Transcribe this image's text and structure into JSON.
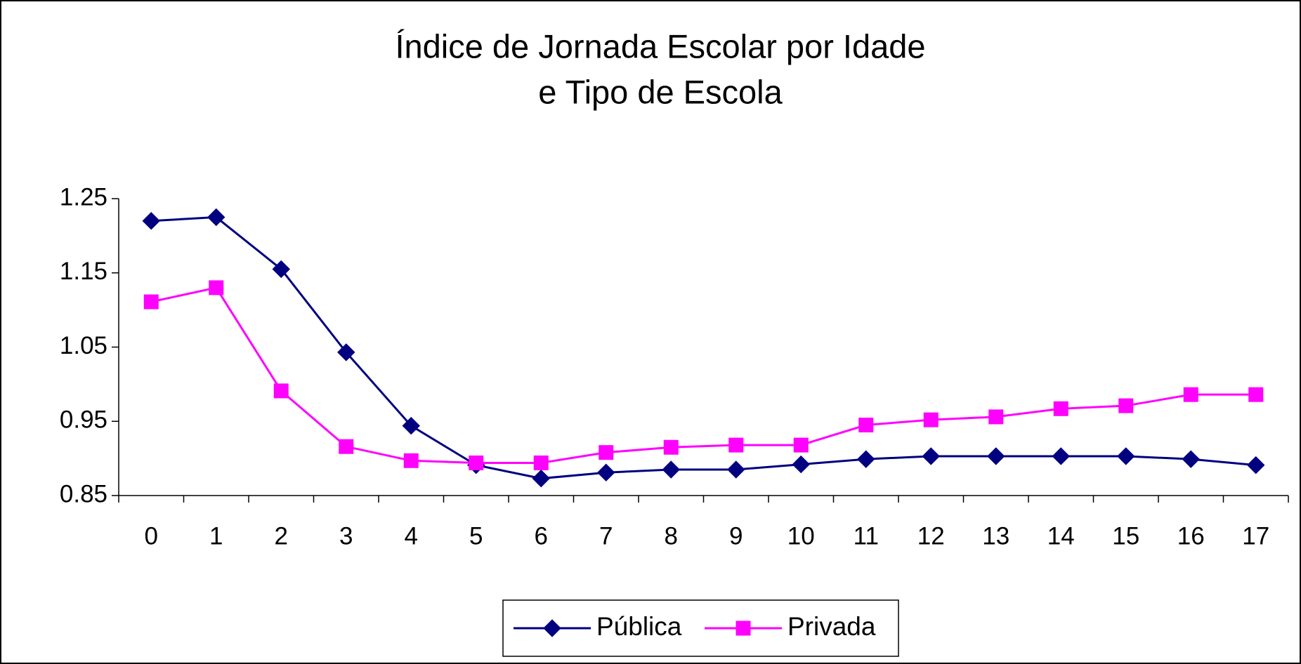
{
  "chart_data": {
    "type": "line",
    "title": [
      "Índice de Jornada Escolar por Idade",
      "e Tipo de Escola"
    ],
    "categories": [
      "0",
      "1",
      "2",
      "3",
      "4",
      "5",
      "6",
      "7",
      "8",
      "9",
      "10",
      "11",
      "12",
      "13",
      "14",
      "15",
      "16",
      "17"
    ],
    "series": [
      {
        "name": "Pública",
        "color": "#000080",
        "marker": "diamond",
        "values": [
          1.22,
          1.225,
          1.155,
          1.043,
          0.944,
          0.891,
          0.873,
          0.881,
          0.885,
          0.885,
          0.892,
          0.899,
          0.903,
          0.903,
          0.903,
          0.903,
          0.899,
          0.891
        ]
      },
      {
        "name": "Privada",
        "color": "#ff00ff",
        "marker": "square",
        "values": [
          1.111,
          1.13,
          0.991,
          0.916,
          0.897,
          0.894,
          0.894,
          0.908,
          0.915,
          0.918,
          0.918,
          0.945,
          0.952,
          0.956,
          0.967,
          0.971,
          0.986,
          0.986
        ]
      }
    ],
    "ylim": [
      0.85,
      1.25
    ],
    "yticks": [
      0.85,
      0.95,
      1.05,
      1.15,
      1.25
    ],
    "grid": false,
    "legend": "bottom"
  }
}
